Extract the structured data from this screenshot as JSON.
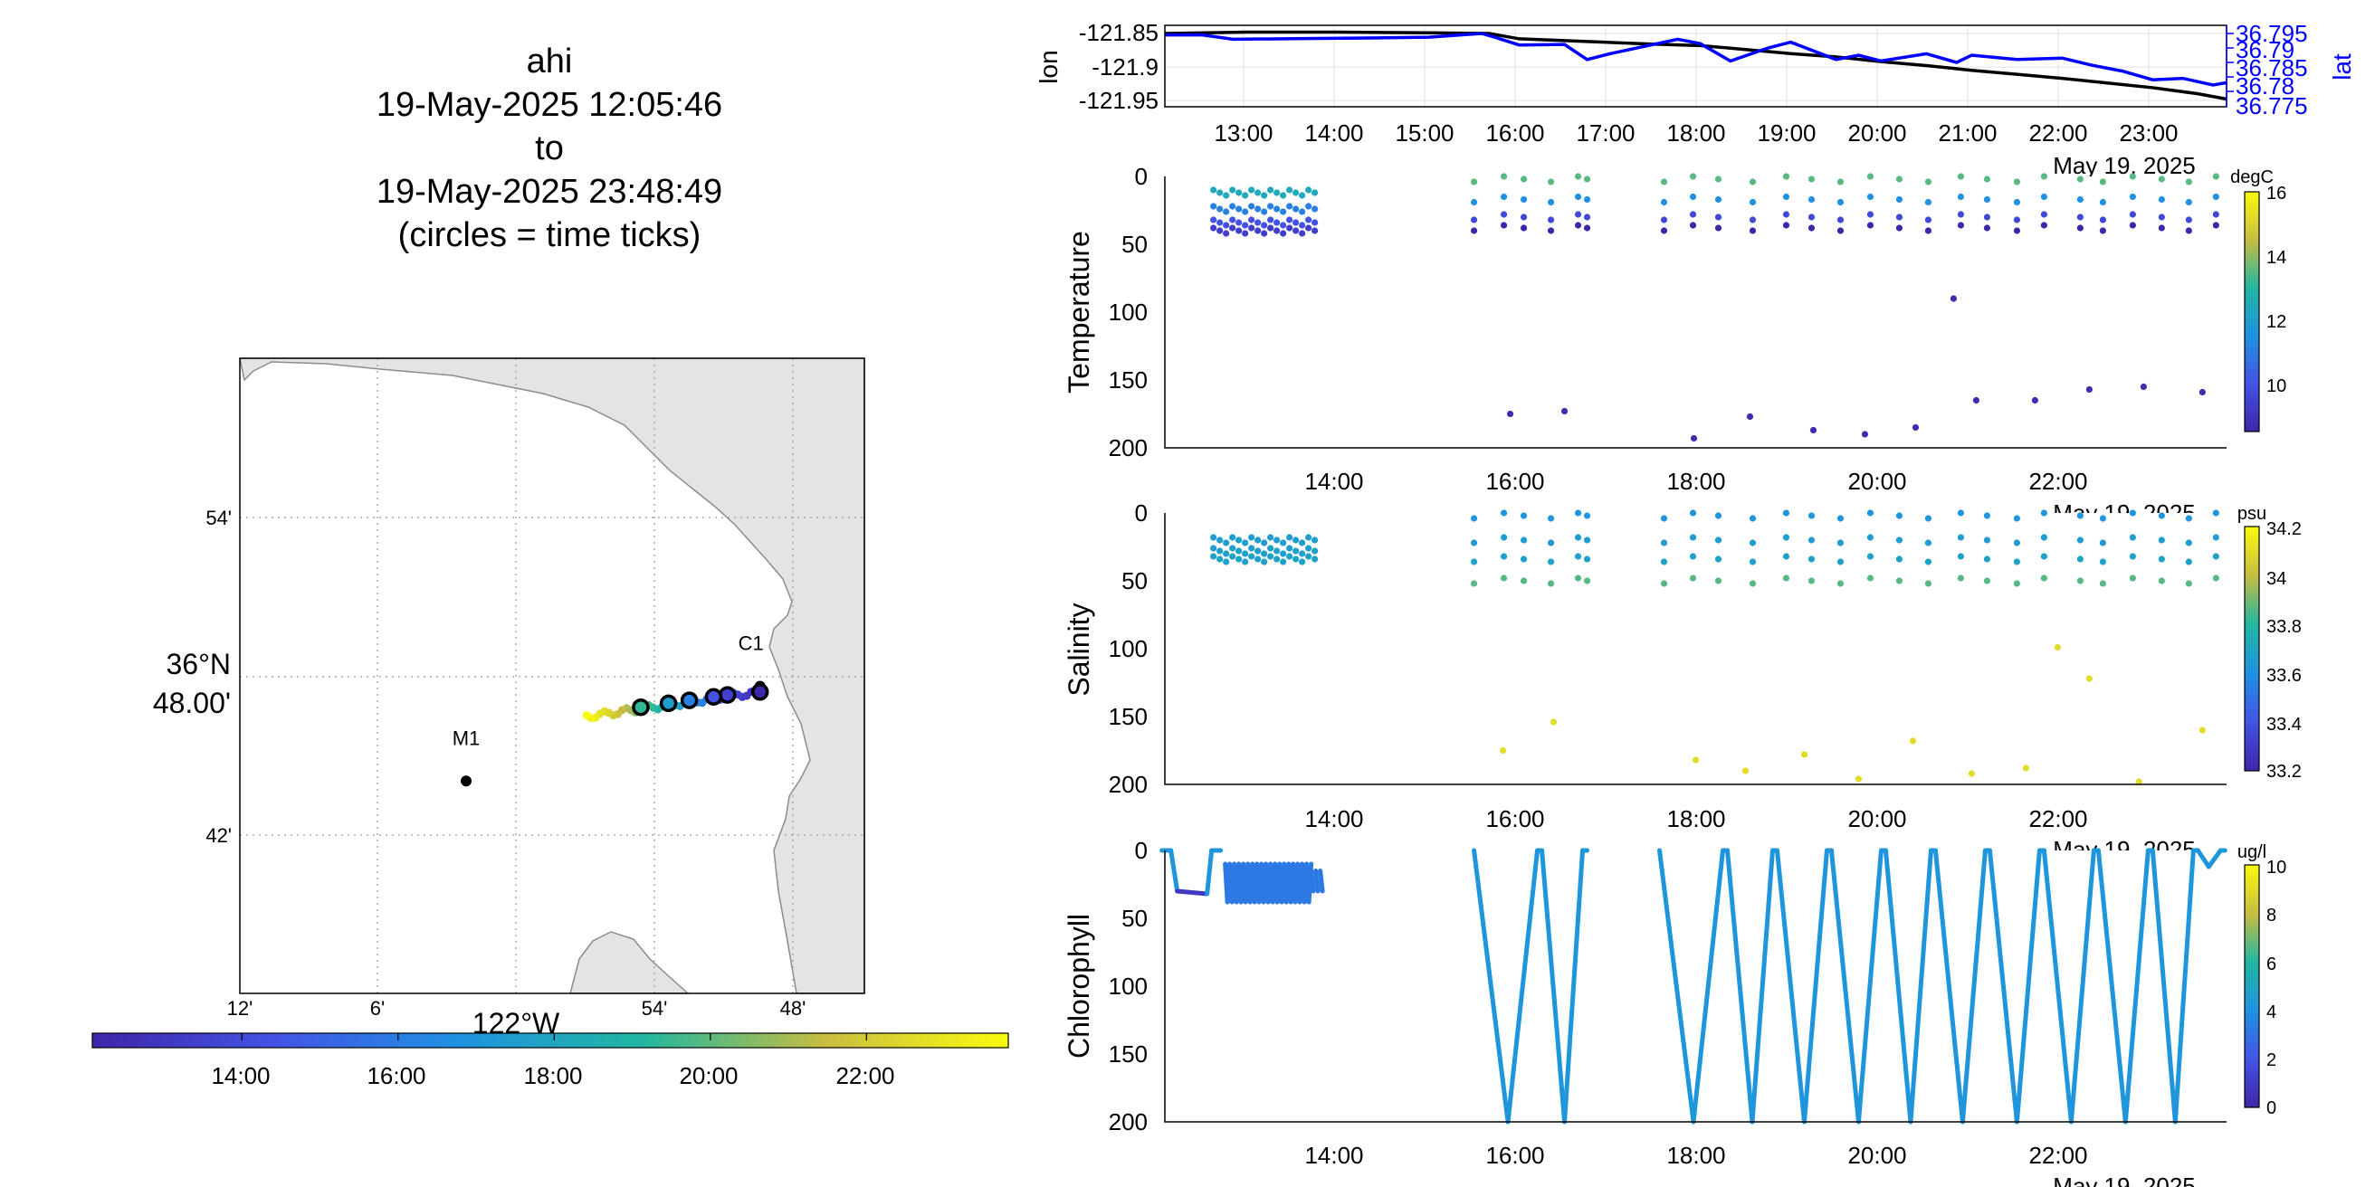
{
  "title": {
    "lines": [
      "ahi",
      "19-May-2025 12:05:46",
      "to",
      "19-May-2025 23:48:49",
      "(circles = time ticks)"
    ]
  },
  "chart_data": [
    {
      "id": "map",
      "type": "scatter",
      "title": "",
      "x_tick_labels": [
        "12'",
        "6'",
        "54'",
        "48'"
      ],
      "x_axis_label": "122°W",
      "y_tick_labels": [
        "54'",
        "42'"
      ],
      "y_center_label": [
        "36°N",
        "48.00'"
      ],
      "stations": [
        {
          "name": "M1",
          "lon": -122.046,
          "lat": 36.747
        },
        {
          "name": "C1",
          "lon": -121.846,
          "lat": 36.797
        }
      ],
      "colors": {
        "land": "#e4e4e4",
        "coast": "#8c8c8c",
        "station": "#000000"
      }
    },
    {
      "id": "time-colorbar",
      "type": "colorbar",
      "tick_labels": [
        "14:00",
        "16:00",
        "18:00",
        "20:00",
        "22:00"
      ],
      "range": [
        "12:05",
        "23:49"
      ]
    },
    {
      "id": "lonlat",
      "type": "line",
      "ylabel_left": "lon",
      "ylabel_right": "lat",
      "y_ticks_left": [
        "-121.85",
        "-121.9",
        "-121.95"
      ],
      "y_ticks_right": [
        "36.795",
        "36.79",
        "36.785",
        "36.78",
        "36.775"
      ],
      "x_ticks": [
        "13:00",
        "14:00",
        "15:00",
        "16:00",
        "17:00",
        "18:00",
        "19:00",
        "20:00",
        "21:00",
        "22:00",
        "23:00"
      ],
      "date_label": "May 19, 2025",
      "series": [
        {
          "color": "#000000",
          "x": [
            "12:05",
            "13:00",
            "14:00",
            "15:00",
            "15:40",
            "16:00",
            "16:45",
            "17:30",
            "18:00",
            "18:30",
            "19:00",
            "19:30",
            "20:00",
            "20:30",
            "21:00",
            "21:30",
            "22:00",
            "22:30",
            "23:00",
            "23:30",
            "23:49"
          ],
          "values": [
            -121.85,
            -121.848,
            -121.848,
            -121.849,
            -121.85,
            -121.858,
            -121.862,
            -121.866,
            -121.868,
            -121.874,
            -121.88,
            -121.885,
            -121.892,
            -121.898,
            -121.905,
            -121.911,
            -121.917,
            -121.924,
            -121.931,
            -121.94,
            -121.948
          ]
        },
        {
          "color": "#0000ff",
          "x": [
            "12:05",
            "12:30",
            "12:50",
            "13:30",
            "14:30",
            "15:00",
            "15:35",
            "15:45",
            "16:00",
            "16:30",
            "16:45",
            "17:00",
            "17:45",
            "18:00",
            "18:20",
            "18:45",
            "19:00",
            "19:30",
            "19:45",
            "20:00",
            "20:30",
            "20:50",
            "21:00",
            "21:30",
            "22:00",
            "22:20",
            "22:40",
            "23:00",
            "23:20",
            "23:40",
            "23:49"
          ],
          "values": [
            36.7945,
            36.7945,
            36.793,
            36.7932,
            36.7935,
            36.7937,
            36.795,
            36.7935,
            36.791,
            36.7912,
            36.786,
            36.788,
            36.793,
            36.7915,
            36.7855,
            36.79,
            36.792,
            36.786,
            36.7875,
            36.7855,
            36.788,
            36.785,
            36.7875,
            36.786,
            36.7865,
            36.784,
            36.782,
            36.779,
            36.7795,
            36.7772,
            36.778
          ]
        }
      ]
    },
    {
      "id": "temperature",
      "type": "scatter",
      "ylabel": "Temperature",
      "unit": "degC",
      "ylim": [
        0,
        200
      ],
      "y_ticks": [
        "0",
        "50",
        "100",
        "150",
        "200"
      ],
      "x_ticks": [
        "14:00",
        "16:00",
        "18:00",
        "20:00",
        "22:00"
      ],
      "date_label": "May 19, 2025",
      "colorbar_ticks": [
        "16",
        "14",
        "12",
        "10"
      ],
      "clim": [
        8.5,
        16
      ]
    },
    {
      "id": "salinity",
      "type": "scatter",
      "ylabel": "Salinity",
      "unit": "psu",
      "ylim": [
        0,
        200
      ],
      "y_ticks": [
        "0",
        "50",
        "100",
        "150",
        "200"
      ],
      "x_ticks": [
        "14:00",
        "16:00",
        "18:00",
        "20:00",
        "22:00"
      ],
      "date_label": "May 19, 2025",
      "colorbar_ticks": [
        "34.2",
        "34",
        "33.8",
        "33.6",
        "33.4",
        "33.2"
      ],
      "clim": [
        33.2,
        34.2
      ]
    },
    {
      "id": "chlorophyll",
      "type": "line",
      "ylabel": "Chlorophyll",
      "unit": "ug/l",
      "ylim": [
        0,
        200
      ],
      "y_ticks": [
        "0",
        "50",
        "100",
        "150",
        "200"
      ],
      "x_ticks": [
        "14:00",
        "16:00",
        "18:00",
        "20:00",
        "22:00"
      ],
      "date_label": "May 19, 2025",
      "colorbar_ticks": [
        "10",
        "8",
        "6",
        "4",
        "2",
        "0"
      ],
      "clim": [
        0,
        10
      ]
    }
  ]
}
